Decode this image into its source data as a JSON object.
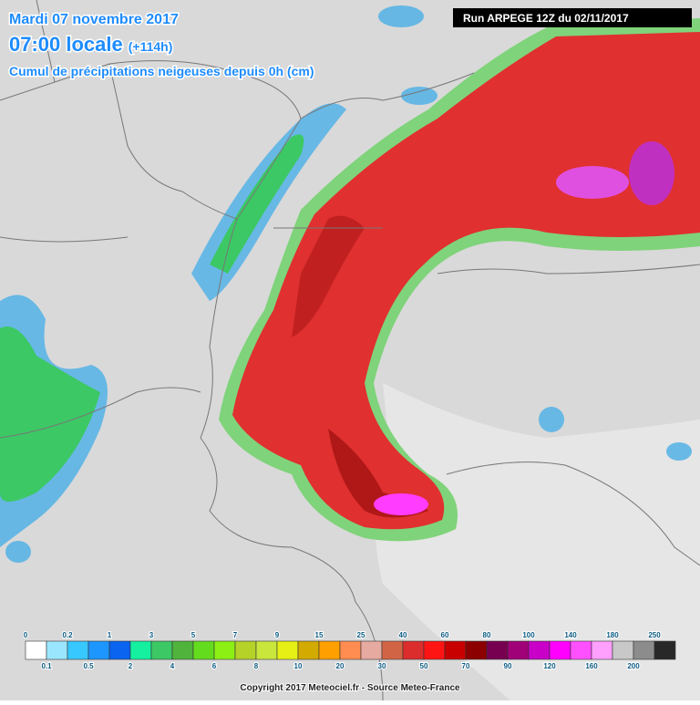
{
  "header": {
    "date": "Mardi 07 novembre 2017",
    "time": "07:00 locale",
    "lead": "(+114h)",
    "subtitle": "Cumul de précipitations neigeuses depuis 0h (cm)",
    "run": "Run ARPEGE 12Z du 02/11/2017"
  },
  "legend": {
    "items": [
      {
        "label": "0",
        "color": "#ffffff"
      },
      {
        "label": "0.1",
        "color": "#9be6ff"
      },
      {
        "label": "0.2",
        "color": "#37c8ff"
      },
      {
        "label": "0.5",
        "color": "#1e96ff"
      },
      {
        "label": "1",
        "color": "#0a64f0"
      },
      {
        "label": "2",
        "color": "#14f0a0"
      },
      {
        "label": "3",
        "color": "#3cc864"
      },
      {
        "label": "4",
        "color": "#50b43c"
      },
      {
        "label": "5",
        "color": "#64dc1e"
      },
      {
        "label": "6",
        "color": "#8cf014"
      },
      {
        "label": "7",
        "color": "#b4d228"
      },
      {
        "label": "8",
        "color": "#c8e63c"
      },
      {
        "label": "9",
        "color": "#e6f014"
      },
      {
        "label": "10",
        "color": "#d2aa00"
      },
      {
        "label": "15",
        "color": "#ffa000"
      },
      {
        "label": "20",
        "color": "#ff8c50"
      },
      {
        "label": "25",
        "color": "#e6aaa0"
      },
      {
        "label": "30",
        "color": "#d26446"
      },
      {
        "label": "40",
        "color": "#dc2d2d"
      },
      {
        "label": "50",
        "color": "#ff1414"
      },
      {
        "label": "60",
        "color": "#c80000"
      },
      {
        "label": "70",
        "color": "#8c0000"
      },
      {
        "label": "80",
        "color": "#780050"
      },
      {
        "label": "90",
        "color": "#a00078"
      },
      {
        "label": "100",
        "color": "#c800c8"
      },
      {
        "label": "120",
        "color": "#ff00ff"
      },
      {
        "label": "140",
        "color": "#ff50ff"
      },
      {
        "label": "160",
        "color": "#ffa0ff"
      },
      {
        "label": "180",
        "color": "#c8c8c8"
      },
      {
        "label": "200",
        "color": "#8c8c8c"
      },
      {
        "label": "250",
        "color": "#282828"
      }
    ]
  },
  "footer": {
    "copyright": "Copyright 2017 Meteociel.fr - Source Meteo-France"
  }
}
